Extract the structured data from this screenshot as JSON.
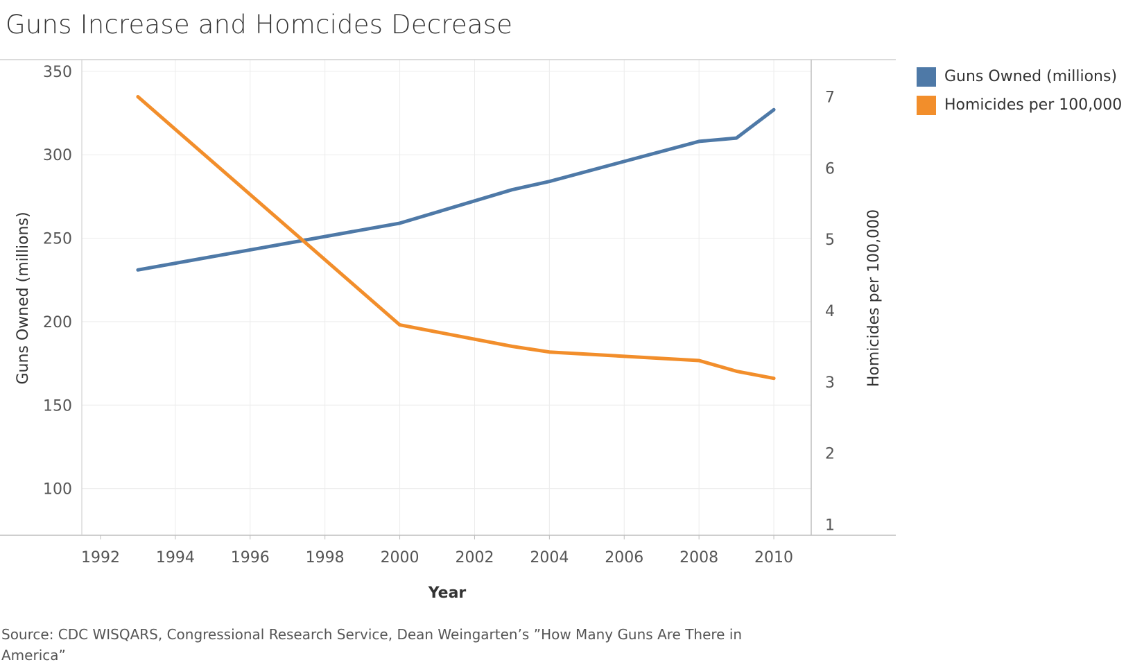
{
  "chart_data": {
    "type": "line",
    "title": "Guns Increase and Homcides Decrease",
    "xlabel": "Year",
    "ylabel_left": "Guns Owned (millions)",
    "ylabel_right": "Homicides per 100,000",
    "x_ticks": [
      "1992",
      "1994",
      "1996",
      "1998",
      "2000",
      "2002",
      "2004",
      "2006",
      "2008",
      "2010"
    ],
    "y_left_ticks": [
      "100",
      "150",
      "200",
      "250",
      "300",
      "350"
    ],
    "y_right_ticks": [
      "1",
      "2",
      "3",
      "4",
      "5",
      "6",
      "7"
    ],
    "x_range": [
      1991.5,
      2011
    ],
    "y_left_range": [
      72,
      357
    ],
    "y_right_range": [
      0.85,
      7.52
    ],
    "grid": true,
    "legend_position": "top-right",
    "series": [
      {
        "name": "Guns Owned (millions)",
        "axis": "left",
        "color": "#4e79a7",
        "x": [
          1993,
          2000,
          2003,
          2004,
          2008,
          2009,
          2010
        ],
        "values": [
          231,
          259,
          279,
          284,
          308,
          310,
          327
        ]
      },
      {
        "name": "Homicides per 100,000",
        "axis": "right",
        "color": "#f28e2b",
        "x": [
          1993,
          2000,
          2003,
          2004,
          2008,
          2009,
          2010
        ],
        "values": [
          7.0,
          3.8,
          3.5,
          3.42,
          3.3,
          3.15,
          3.05
        ]
      }
    ]
  },
  "source": "Source: CDC WISQARS, Congressional Research Service, Dean Weingarten’s ”How Many Guns Are There in America”"
}
